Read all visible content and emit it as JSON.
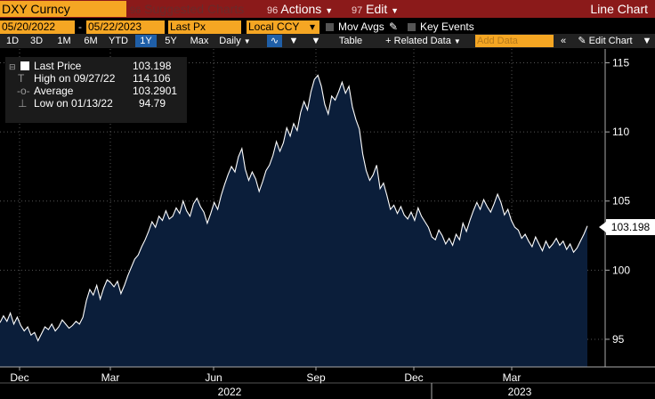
{
  "toolbar": {
    "ticker": "DXY Curncy",
    "suggested": "Suggested Charts",
    "actions_num": "96",
    "actions": "Actions",
    "edit_num": "97",
    "edit": "Edit",
    "chart_type": "Line Chart"
  },
  "settings": {
    "start_date": "05/20/2022",
    "end_date": "05/22/2023",
    "dash": "-",
    "field": "Last Px",
    "currency": "Local CCY",
    "mov_avgs": "Mov Avgs",
    "key_events": "Key Events"
  },
  "range_bar": {
    "periods": [
      "1D",
      "3D",
      "1M",
      "6M",
      "YTD",
      "1Y",
      "5Y",
      "Max"
    ],
    "selected": "1Y",
    "frequency": "Daily",
    "table": "Table",
    "related": "Related Data",
    "add_data": "Add Data",
    "edit_chart": "Edit Chart"
  },
  "legend": {
    "last_label": "Last Price",
    "last_value": "103.198",
    "high_label": "High on 09/27/22",
    "high_value": "114.106",
    "avg_label": "Average",
    "avg_value": "103.2901",
    "low_label": "Low on 01/13/22",
    "low_value": "94.79"
  },
  "colors": {
    "fill": "#0b1e3a",
    "line": "#ffffff",
    "toolbar": "#8b1a1a",
    "accent": "#f5a623"
  },
  "chart_data": {
    "type": "area",
    "title": "",
    "xlabel": "",
    "ylabel": "",
    "ylim": [
      93,
      116
    ],
    "yticks": [
      95,
      100,
      105,
      110,
      115
    ],
    "x_month_labels": [
      "Dec",
      "Mar",
      "Jun",
      "Sep",
      "Dec",
      "Mar"
    ],
    "x_year_labels": [
      "2022",
      "2023"
    ],
    "last_value_label": "103.198",
    "series": [
      {
        "values": [
          96.2,
          96.7,
          96.3,
          96.9,
          96.1,
          96.6,
          96.0,
          95.6,
          95.9,
          95.3,
          95.5,
          94.9,
          95.4,
          95.9,
          95.7,
          96.1,
          95.6,
          95.9,
          96.4,
          96.1,
          95.8,
          96.0,
          96.3,
          96.1,
          96.6,
          97.8,
          98.6,
          98.2,
          98.9,
          97.9,
          98.7,
          99.3,
          99.1,
          98.8,
          99.2,
          98.3,
          98.9,
          99.6,
          100.2,
          100.8,
          101.1,
          101.7,
          102.2,
          102.8,
          103.5,
          103.1,
          103.9,
          103.6,
          104.3,
          103.7,
          103.9,
          104.5,
          104.1,
          105.0,
          104.3,
          103.9,
          104.8,
          105.2,
          104.6,
          104.2,
          103.4,
          104.1,
          104.9,
          104.4,
          105.4,
          106.2,
          106.9,
          107.5,
          107.1,
          108.2,
          108.8,
          107.3,
          106.5,
          107.1,
          106.6,
          105.7,
          106.4,
          107.2,
          107.6,
          108.3,
          109.3,
          108.6,
          109.2,
          110.3,
          109.7,
          110.6,
          110.1,
          111.4,
          112.2,
          111.6,
          112.9,
          113.8,
          114.1,
          113.3,
          112.0,
          111.3,
          112.6,
          112.3,
          112.9,
          113.6,
          112.8,
          113.3,
          111.8,
          110.9,
          110.2,
          108.4,
          107.2,
          106.5,
          106.9,
          107.6,
          105.9,
          106.3,
          105.4,
          104.4,
          104.7,
          104.1,
          104.6,
          104.0,
          103.7,
          104.2,
          103.6,
          104.5,
          103.9,
          103.5,
          103.1,
          102.4,
          102.2,
          102.9,
          102.5,
          101.9,
          102.3,
          101.8,
          102.6,
          102.2,
          103.4,
          102.8,
          103.6,
          104.3,
          104.9,
          104.4,
          105.1,
          104.6,
          104.2,
          104.8,
          105.5,
          104.9,
          104.0,
          104.4,
          103.6,
          103.1,
          102.9,
          102.3,
          102.6,
          102.1,
          101.7,
          102.4,
          101.9,
          101.4,
          102.1,
          101.6,
          101.9,
          102.3,
          101.8,
          102.1,
          101.5,
          101.9,
          101.3,
          101.6,
          102.1,
          102.6,
          103.2
        ]
      }
    ]
  }
}
